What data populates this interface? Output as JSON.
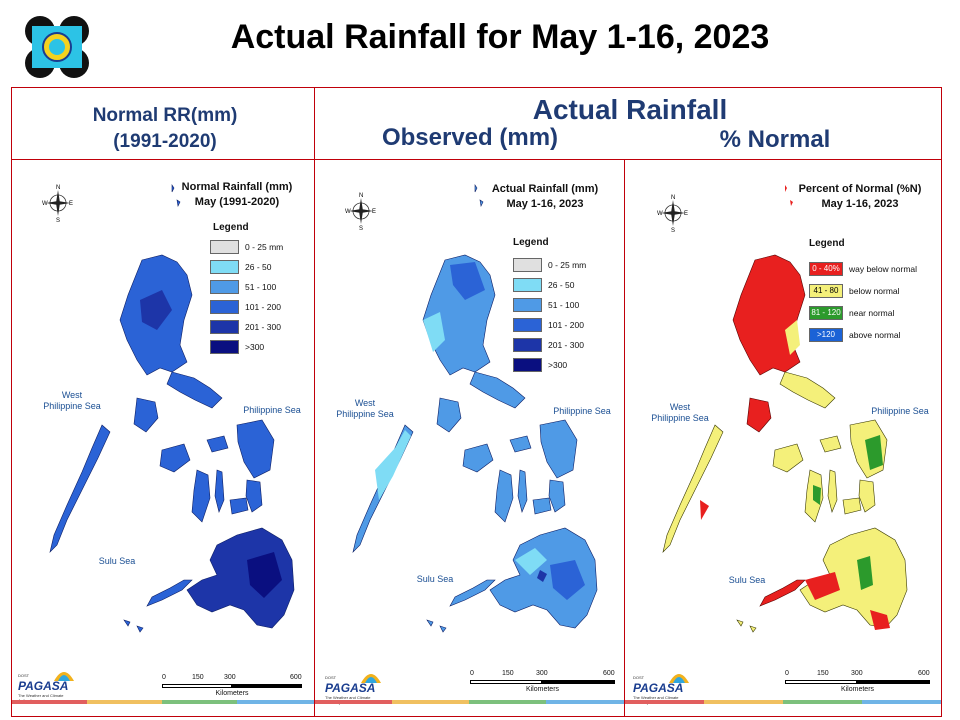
{
  "title": "Actual Rainfall for May 1-16, 2023",
  "headers": {
    "normal_line1": "Normal RR(mm)",
    "normal_line2": "(1991-2020)",
    "actual": "Actual Rainfall",
    "observed": "Observed (mm)",
    "percent": "% Normal"
  },
  "panels": [
    {
      "title_line1": "Normal Rainfall (mm)",
      "title_line2": "May (1991-2020)",
      "legend_title": "Legend",
      "legend": [
        {
          "label": "0 - 25 mm",
          "color": "#e0e0e0"
        },
        {
          "label": "26 - 50",
          "color": "#7fdcf5"
        },
        {
          "label": "51 - 100",
          "color": "#4f9ae6"
        },
        {
          "label": "101 - 200",
          "color": "#2b63d6"
        },
        {
          "label": "201 - 300",
          "color": "#1d35a8"
        },
        {
          "label": ">300",
          "color": "#0a0f80"
        }
      ],
      "seas": {
        "west1": "West",
        "west2": "Philippine Sea",
        "east": "Philippine Sea",
        "sulu": "Sulu Sea"
      }
    },
    {
      "title_line1": "Actual Rainfall (mm)",
      "title_line2": "May 1-16, 2023",
      "legend_title": "Legend",
      "legend": [
        {
          "label": "0 - 25 mm",
          "color": "#e0e0e0"
        },
        {
          "label": "26 - 50",
          "color": "#7fdcf5"
        },
        {
          "label": "51 - 100",
          "color": "#4f9ae6"
        },
        {
          "label": "101 - 200",
          "color": "#2b63d6"
        },
        {
          "label": "201 - 300",
          "color": "#1d35a8"
        },
        {
          "label": ">300",
          "color": "#0a0f80"
        }
      ],
      "seas": {
        "west1": "West",
        "west2": "Philippine Sea",
        "east": "Philippine Sea",
        "sulu": "Sulu Sea"
      }
    },
    {
      "title_line1": "Percent of Normal (%N)",
      "title_line2": "May 1-16, 2023",
      "legend_title": "Legend",
      "legend": [
        {
          "swatch": "0 - 40%",
          "label": "way below normal",
          "color": "#e8201f"
        },
        {
          "swatch": "41 - 80",
          "label": "below normal",
          "color": "#f4f07a"
        },
        {
          "swatch": "81 - 120",
          "label": "near normal",
          "color": "#2c9a2c"
        },
        {
          "swatch": ">120",
          "label": "above normal",
          "color": "#1b62d6"
        }
      ],
      "seas": {
        "west1": "West",
        "west2": "Philippine Sea",
        "east": "Philippine Sea",
        "sulu": "Sulu Sea"
      }
    }
  ],
  "scale": {
    "ticks": [
      "0",
      "150",
      "300",
      "600"
    ],
    "unit": "Kilometers"
  },
  "compass": {
    "n": "N",
    "s": "S",
    "e": "E",
    "w": "W"
  },
  "brand": {
    "name": "PAGASA",
    "small": "DOST",
    "tagline": "The Weather and Climate Authority"
  },
  "colors": {
    "frame": "#c0000a",
    "header_text": "#1f3b73",
    "title": "#000000"
  }
}
